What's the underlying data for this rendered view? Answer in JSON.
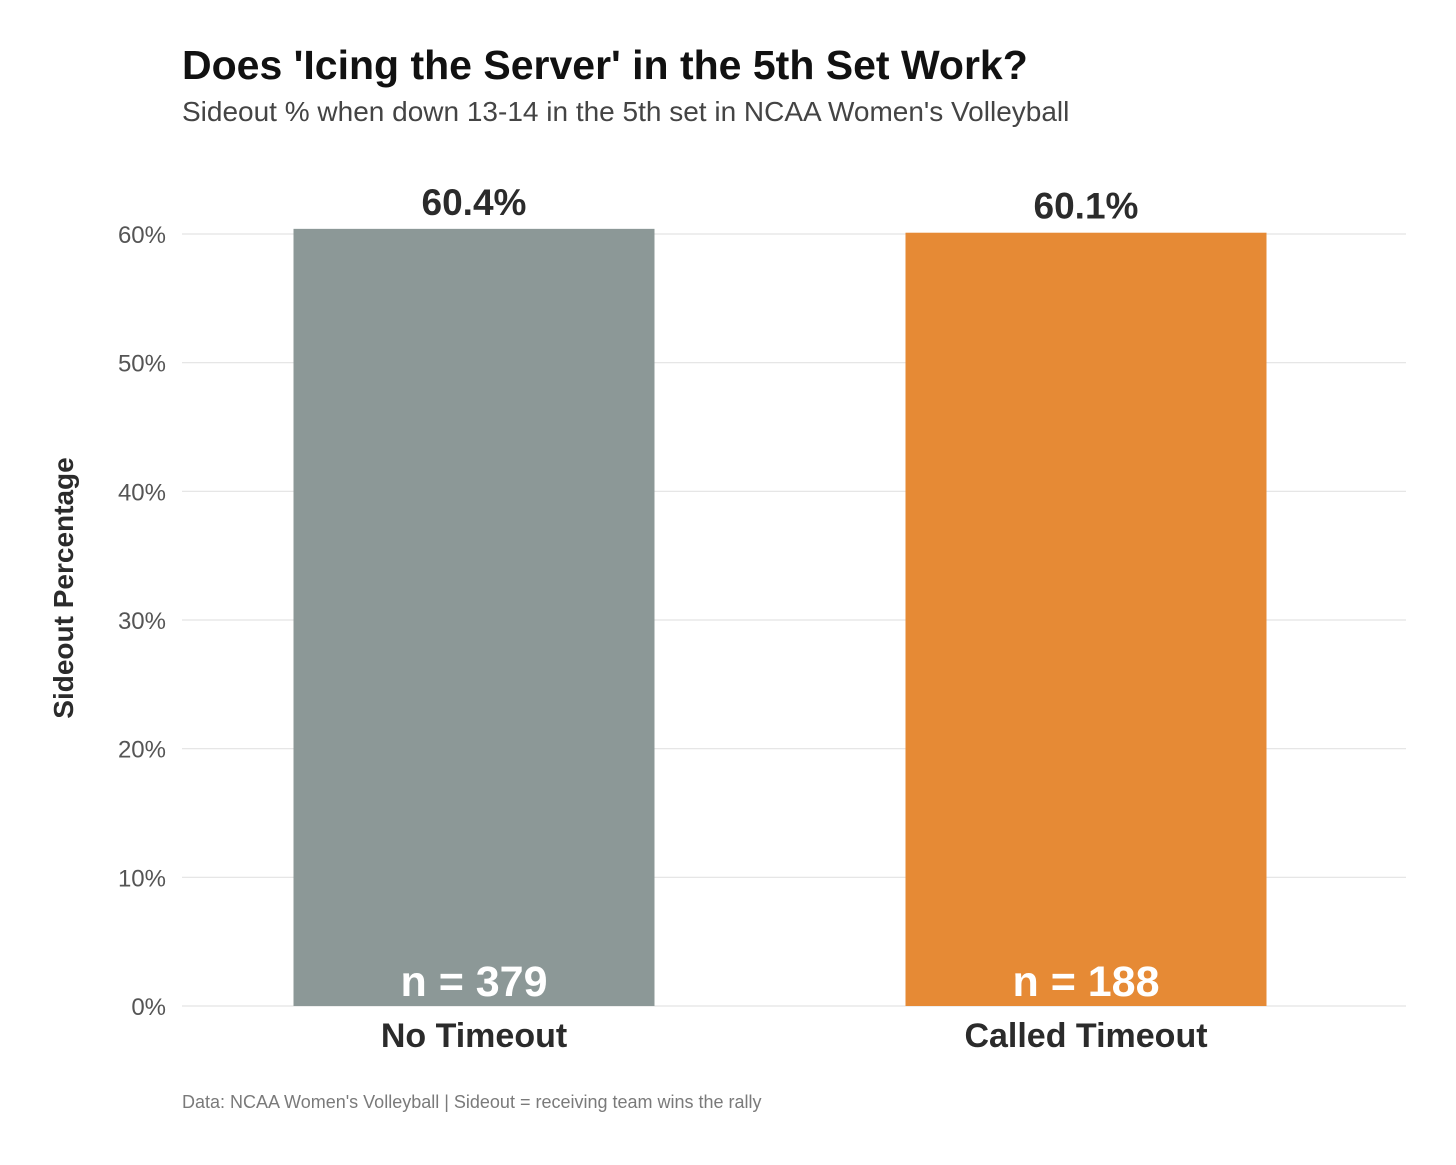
{
  "chart_data": {
    "type": "bar",
    "title": "Does 'Icing the Server' in the 5th Set Work?",
    "subtitle": "Sideout % when down 13-14 in the 5th set in NCAA Women's Volleyball",
    "caption": "Data: NCAA Women's Volleyball | Sideout = receiving team wins the rally",
    "xlabel": "",
    "ylabel": "Sideout Percentage",
    "ylim": [
      0,
      0.6
    ],
    "yticks": [
      0,
      0.1,
      0.2,
      0.3,
      0.4,
      0.5,
      0.6
    ],
    "ytick_labels": [
      "0%",
      "10%",
      "20%",
      "30%",
      "40%",
      "50%",
      "60%"
    ],
    "grid": true,
    "categories": [
      "No Timeout",
      "Called Timeout"
    ],
    "values": [
      0.604,
      0.601
    ],
    "value_labels": [
      "60.4%",
      "60.1%"
    ],
    "n_labels": [
      "n = 379",
      "n = 188"
    ],
    "colors": [
      "#8c9897",
      "#e68a35"
    ]
  }
}
